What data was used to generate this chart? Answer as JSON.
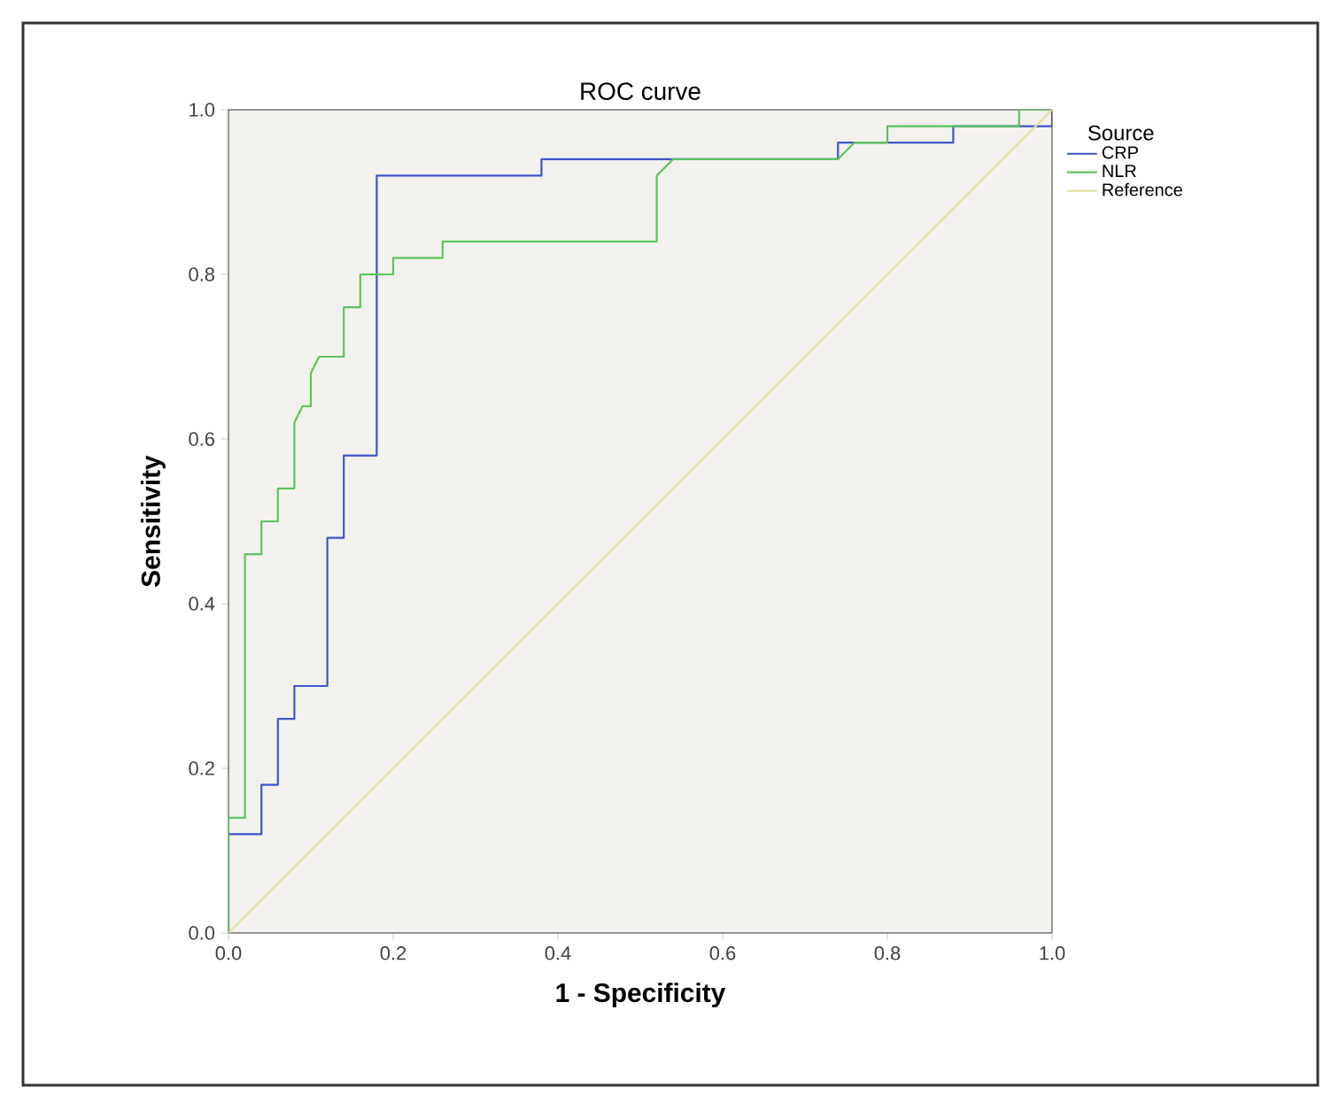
{
  "chart_data": {
    "type": "line",
    "title": "ROC curve",
    "xlabel": "1 - Specificity",
    "ylabel": "Sensitivity",
    "legend_title": "Source",
    "legend": "right",
    "grid": false,
    "line_style": "solid",
    "xlim": [
      0,
      1
    ],
    "ylim": [
      0,
      1
    ],
    "xticks": [
      {
        "value": 0,
        "label": "0.0"
      },
      {
        "value": 0.2,
        "label": "0.2"
      },
      {
        "value": 0.4,
        "label": "0.4"
      },
      {
        "value": 0.6,
        "label": "0.6"
      },
      {
        "value": 0.8,
        "label": "0.8"
      },
      {
        "value": 1,
        "label": "1.0"
      }
    ],
    "yticks": [
      {
        "value": 0,
        "label": "0.0"
      },
      {
        "value": 0.2,
        "label": "0.2"
      },
      {
        "value": 0.4,
        "label": "0.4"
      },
      {
        "value": 0.6,
        "label": "0.6"
      },
      {
        "value": 0.8,
        "label": "0.8"
      },
      {
        "value": 1,
        "label": "1.0"
      }
    ],
    "series": [
      {
        "name": "CRP",
        "color": "#3f55c8",
        "x": [
          0,
          0,
          0.04,
          0.04,
          0.06,
          0.06,
          0.08,
          0.08,
          0.12,
          0.12,
          0.14,
          0.14,
          0.18,
          0.18,
          0.38,
          0.38,
          0.74,
          0.74,
          0.88,
          0.88,
          1,
          1
        ],
        "values": [
          0,
          0.12,
          0.12,
          0.18,
          0.18,
          0.26,
          0.26,
          0.3,
          0.3,
          0.48,
          0.48,
          0.58,
          0.58,
          0.92,
          0.92,
          0.94,
          0.94,
          0.96,
          0.96,
          0.98,
          0.98,
          1
        ]
      },
      {
        "name": "NLR",
        "color": "#5cc45c",
        "x": [
          0,
          0,
          0.02,
          0.02,
          0.04,
          0.04,
          0.06,
          0.06,
          0.08,
          0.08,
          0.09,
          0.1,
          0.1,
          0.11,
          0.14,
          0.14,
          0.16,
          0.16,
          0.2,
          0.2,
          0.26,
          0.26,
          0.52,
          0.52,
          0.54,
          0.74,
          0.76,
          0.8,
          0.8,
          0.96,
          0.96,
          1
        ],
        "values": [
          0,
          0.14,
          0.14,
          0.46,
          0.46,
          0.5,
          0.5,
          0.54,
          0.54,
          0.62,
          0.64,
          0.64,
          0.68,
          0.7,
          0.7,
          0.76,
          0.76,
          0.8,
          0.8,
          0.82,
          0.82,
          0.84,
          0.84,
          0.92,
          0.94,
          0.94,
          0.96,
          0.96,
          0.98,
          0.98,
          1,
          1
        ]
      },
      {
        "name": "Reference",
        "color": "#e0e0a0",
        "x": [
          0,
          1
        ],
        "values": [
          0,
          1
        ]
      }
    ]
  }
}
